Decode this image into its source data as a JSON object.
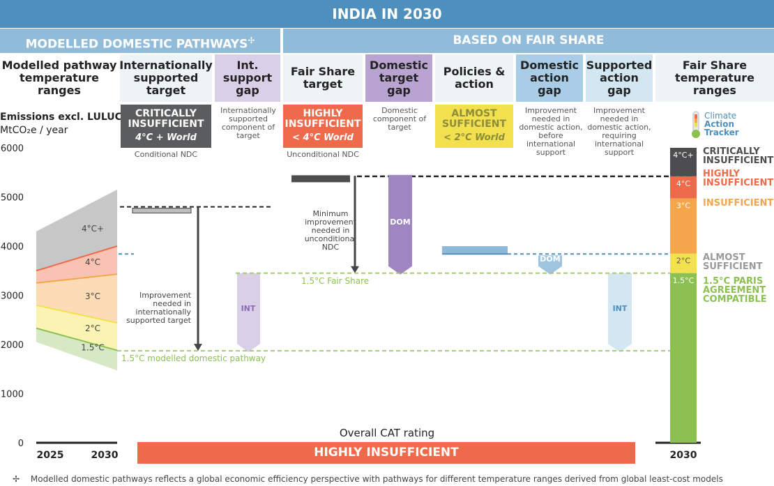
{
  "header": {
    "title": "INDIA IN 2030",
    "left_section": "MODELLED DOMESTIC PATHWAYS",
    "left_section_mark": "✢",
    "right_section": "BASED ON FAIR SHARE"
  },
  "columns": [
    {
      "label": "Modelled pathway temperature ranges"
    },
    {
      "label": "Internationally supported target"
    },
    {
      "label": "Int. support gap"
    },
    {
      "label": "Fair Share target"
    },
    {
      "label": "Domestic target gap"
    },
    {
      "label": "Policies & action"
    },
    {
      "label": "Domestic action gap"
    },
    {
      "label": "Supported action gap"
    },
    {
      "label": "Fair Share temperature ranges"
    }
  ],
  "ratings": {
    "int_target": {
      "label": "CRITICALLY INSUFFICIENT",
      "sub": "4°C + World",
      "note": "Conditional NDC",
      "color": "#5a5c5e"
    },
    "fair_share": {
      "label": "HIGHLY INSUFFICIENT",
      "sub": "< 4°C World",
      "note": "Unconditional NDC",
      "color": "#ef6a4b"
    },
    "policies": {
      "label": "ALMOST SUFFICIENT",
      "sub": "< 2°C World",
      "color": "#f3e04e"
    }
  },
  "descriptions": {
    "int_gap": "Internationally supported component of target",
    "dom_target_gap": "Domestic component of target",
    "dom_action_gap": "Improvement needed in domestic action, before international support",
    "supported_action_gap": "Improvement needed in domestic action, requiring international support"
  },
  "axis": {
    "title": "Emissions excl. LULUCF",
    "unit": "MtCO₂e / year",
    "ticks": [
      "6000",
      "5000",
      "4000",
      "3000",
      "2000",
      "1000",
      "0"
    ],
    "x_left": [
      "2025",
      "2030"
    ],
    "x_right": "2030"
  },
  "annotations": {
    "improvement_int": "Improvement needed in internationally supported target",
    "minimum_improvement": "Minimum improvement needed in unconditional NDC",
    "fair_share_line": "1.5°C Fair Share",
    "modelled_line": "1.5°C modelled domestic pathway",
    "int_tag": "INT",
    "dom_tag": "DOM"
  },
  "logo": {
    "line1": "Climate",
    "line2": "Action",
    "line3": "Tracker"
  },
  "overall": {
    "label": "Overall CAT rating",
    "value": "HIGHLY INSUFFICIENT"
  },
  "legend": [
    {
      "label": "CRITICALLY INSUFFICIENT",
      "band": "4°C+",
      "color": "#4d4d4f",
      "text_color": "#4d4d4f"
    },
    {
      "label": "HIGHLY INSUFFICIENT",
      "band": "4°C",
      "color": "#ef6a4b",
      "text_color": "#ef6a4b"
    },
    {
      "label": "INSUFFICIENT",
      "band": "3°C",
      "color": "#f5a64a",
      "text_color": "#f5a64a"
    },
    {
      "label": "ALMOST SUFFICIENT",
      "band": "2°C",
      "color": "#f3e04e",
      "text_color": "#9a9a9a"
    },
    {
      "label": "1.5°C PARIS AGREEMENT COMPATIBLE",
      "band": "1.5°C",
      "color": "#8cc152",
      "text_color": "#8cc152"
    }
  ],
  "footnote": {
    "mark": "✢",
    "text": "Modelled domestic pathways reflects a global economic efficiency perspective with pathways for different temperature ranges derived from global least-cost models"
  },
  "chart_data": {
    "type": "area",
    "ylim": [
      0,
      6000
    ],
    "ylabel": "Emissions excl. LULUCF",
    "modelled_pathways": {
      "x": [
        "2025",
        "2030"
      ],
      "bands": [
        {
          "name": "4°C+",
          "upper": [
            4300,
            5150
          ],
          "lower": [
            3500,
            4000
          ]
        },
        {
          "name": "4°C",
          "upper": [
            3500,
            4000
          ],
          "lower": [
            3250,
            3430
          ]
        },
        {
          "name": "3°C",
          "upper": [
            3250,
            3430
          ],
          "lower": [
            2800,
            2440
          ]
        },
        {
          "name": "2°C",
          "upper": [
            2800,
            2440
          ],
          "lower": [
            2330,
            1880
          ]
        },
        {
          "name": "1.5°C",
          "upper": [
            2330,
            1880
          ],
          "lower": [
            2050,
            1470
          ]
        }
      ]
    },
    "targets": {
      "conditional_ndc": 4730,
      "unconditional_ndc": 5300,
      "policies_and_action": [
        3840,
        4000
      ]
    },
    "reference_lines": {
      "conditional_ndc": 4800,
      "unconditional_ndc": 5420,
      "policies": 3840,
      "fair_share_1_5": 3450,
      "modelled_1_5": 1870
    },
    "fair_share_ranges": [
      {
        "name": "4°C+",
        "from": 5420,
        "to": 6000
      },
      {
        "name": "4°C",
        "from": 4970,
        "to": 5420
      },
      {
        "name": "3°C",
        "from": 3850,
        "to": 4970
      },
      {
        "name": "2°C",
        "from": 3450,
        "to": 3850
      },
      {
        "name": "1.5°C",
        "from": 0,
        "to": 3450
      }
    ]
  }
}
